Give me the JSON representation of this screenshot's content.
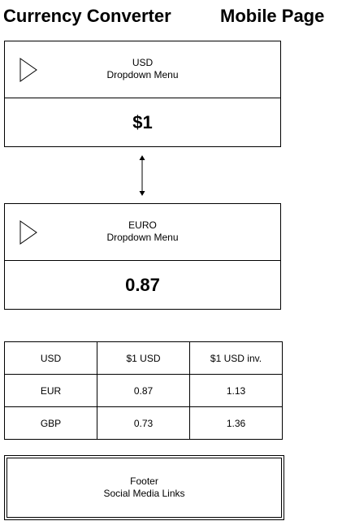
{
  "header": {
    "title_left": "Currency Converter",
    "title_right": "Mobile Page"
  },
  "from_converter": {
    "currency": "USD",
    "dropdown_label": "Dropdown Menu",
    "amount": "$1"
  },
  "to_converter": {
    "currency": "EURO",
    "dropdown_label": "Dropdown Menu",
    "amount": "0.87"
  },
  "rates_table": {
    "header": [
      "USD",
      "$1 USD",
      "$1 USD inv."
    ],
    "rows": [
      [
        "EUR",
        "0.87",
        "1.13"
      ],
      [
        "GBP",
        "0.73",
        "1.36"
      ]
    ]
  },
  "footer": {
    "title": "Footer",
    "subtitle": "Social Media Links"
  },
  "icons": {
    "dropdown": "play-triangle-icon",
    "swap": "double-arrow-icon"
  }
}
